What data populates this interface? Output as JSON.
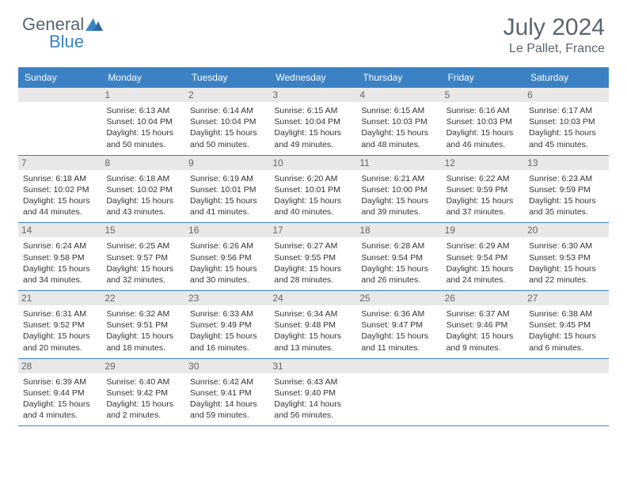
{
  "logo": {
    "part1": "General",
    "part2": "Blue"
  },
  "title": "July 2024",
  "location": "Le Pallet, France",
  "colors": {
    "header_bg": "#3b82c4",
    "header_text": "#ffffff",
    "daynum_bg": "#e8e8e8",
    "daynum_text": "#666666",
    "cell_text": "#333333",
    "title_text": "#5a6570",
    "row_border": "#3b82c4"
  },
  "day_headers": [
    "Sunday",
    "Monday",
    "Tuesday",
    "Wednesday",
    "Thursday",
    "Friday",
    "Saturday"
  ],
  "weeks": [
    [
      null,
      {
        "n": "1",
        "sr": "Sunrise: 6:13 AM",
        "ss": "Sunset: 10:04 PM",
        "d1": "Daylight: 15 hours",
        "d2": "and 50 minutes."
      },
      {
        "n": "2",
        "sr": "Sunrise: 6:14 AM",
        "ss": "Sunset: 10:04 PM",
        "d1": "Daylight: 15 hours",
        "d2": "and 50 minutes."
      },
      {
        "n": "3",
        "sr": "Sunrise: 6:15 AM",
        "ss": "Sunset: 10:04 PM",
        "d1": "Daylight: 15 hours",
        "d2": "and 49 minutes."
      },
      {
        "n": "4",
        "sr": "Sunrise: 6:15 AM",
        "ss": "Sunset: 10:03 PM",
        "d1": "Daylight: 15 hours",
        "d2": "and 48 minutes."
      },
      {
        "n": "5",
        "sr": "Sunrise: 6:16 AM",
        "ss": "Sunset: 10:03 PM",
        "d1": "Daylight: 15 hours",
        "d2": "and 46 minutes."
      },
      {
        "n": "6",
        "sr": "Sunrise: 6:17 AM",
        "ss": "Sunset: 10:03 PM",
        "d1": "Daylight: 15 hours",
        "d2": "and 45 minutes."
      }
    ],
    [
      {
        "n": "7",
        "sr": "Sunrise: 6:18 AM",
        "ss": "Sunset: 10:02 PM",
        "d1": "Daylight: 15 hours",
        "d2": "and 44 minutes."
      },
      {
        "n": "8",
        "sr": "Sunrise: 6:18 AM",
        "ss": "Sunset: 10:02 PM",
        "d1": "Daylight: 15 hours",
        "d2": "and 43 minutes."
      },
      {
        "n": "9",
        "sr": "Sunrise: 6:19 AM",
        "ss": "Sunset: 10:01 PM",
        "d1": "Daylight: 15 hours",
        "d2": "and 41 minutes."
      },
      {
        "n": "10",
        "sr": "Sunrise: 6:20 AM",
        "ss": "Sunset: 10:01 PM",
        "d1": "Daylight: 15 hours",
        "d2": "and 40 minutes."
      },
      {
        "n": "11",
        "sr": "Sunrise: 6:21 AM",
        "ss": "Sunset: 10:00 PM",
        "d1": "Daylight: 15 hours",
        "d2": "and 39 minutes."
      },
      {
        "n": "12",
        "sr": "Sunrise: 6:22 AM",
        "ss": "Sunset: 9:59 PM",
        "d1": "Daylight: 15 hours",
        "d2": "and 37 minutes."
      },
      {
        "n": "13",
        "sr": "Sunrise: 6:23 AM",
        "ss": "Sunset: 9:59 PM",
        "d1": "Daylight: 15 hours",
        "d2": "and 35 minutes."
      }
    ],
    [
      {
        "n": "14",
        "sr": "Sunrise: 6:24 AM",
        "ss": "Sunset: 9:58 PM",
        "d1": "Daylight: 15 hours",
        "d2": "and 34 minutes."
      },
      {
        "n": "15",
        "sr": "Sunrise: 6:25 AM",
        "ss": "Sunset: 9:57 PM",
        "d1": "Daylight: 15 hours",
        "d2": "and 32 minutes."
      },
      {
        "n": "16",
        "sr": "Sunrise: 6:26 AM",
        "ss": "Sunset: 9:56 PM",
        "d1": "Daylight: 15 hours",
        "d2": "and 30 minutes."
      },
      {
        "n": "17",
        "sr": "Sunrise: 6:27 AM",
        "ss": "Sunset: 9:55 PM",
        "d1": "Daylight: 15 hours",
        "d2": "and 28 minutes."
      },
      {
        "n": "18",
        "sr": "Sunrise: 6:28 AM",
        "ss": "Sunset: 9:54 PM",
        "d1": "Daylight: 15 hours",
        "d2": "and 26 minutes."
      },
      {
        "n": "19",
        "sr": "Sunrise: 6:29 AM",
        "ss": "Sunset: 9:54 PM",
        "d1": "Daylight: 15 hours",
        "d2": "and 24 minutes."
      },
      {
        "n": "20",
        "sr": "Sunrise: 6:30 AM",
        "ss": "Sunset: 9:53 PM",
        "d1": "Daylight: 15 hours",
        "d2": "and 22 minutes."
      }
    ],
    [
      {
        "n": "21",
        "sr": "Sunrise: 6:31 AM",
        "ss": "Sunset: 9:52 PM",
        "d1": "Daylight: 15 hours",
        "d2": "and 20 minutes."
      },
      {
        "n": "22",
        "sr": "Sunrise: 6:32 AM",
        "ss": "Sunset: 9:51 PM",
        "d1": "Daylight: 15 hours",
        "d2": "and 18 minutes."
      },
      {
        "n": "23",
        "sr": "Sunrise: 6:33 AM",
        "ss": "Sunset: 9:49 PM",
        "d1": "Daylight: 15 hours",
        "d2": "and 16 minutes."
      },
      {
        "n": "24",
        "sr": "Sunrise: 6:34 AM",
        "ss": "Sunset: 9:48 PM",
        "d1": "Daylight: 15 hours",
        "d2": "and 13 minutes."
      },
      {
        "n": "25",
        "sr": "Sunrise: 6:36 AM",
        "ss": "Sunset: 9:47 PM",
        "d1": "Daylight: 15 hours",
        "d2": "and 11 minutes."
      },
      {
        "n": "26",
        "sr": "Sunrise: 6:37 AM",
        "ss": "Sunset: 9:46 PM",
        "d1": "Daylight: 15 hours",
        "d2": "and 9 minutes."
      },
      {
        "n": "27",
        "sr": "Sunrise: 6:38 AM",
        "ss": "Sunset: 9:45 PM",
        "d1": "Daylight: 15 hours",
        "d2": "and 6 minutes."
      }
    ],
    [
      {
        "n": "28",
        "sr": "Sunrise: 6:39 AM",
        "ss": "Sunset: 9:44 PM",
        "d1": "Daylight: 15 hours",
        "d2": "and 4 minutes."
      },
      {
        "n": "29",
        "sr": "Sunrise: 6:40 AM",
        "ss": "Sunset: 9:42 PM",
        "d1": "Daylight: 15 hours",
        "d2": "and 2 minutes."
      },
      {
        "n": "30",
        "sr": "Sunrise: 6:42 AM",
        "ss": "Sunset: 9:41 PM",
        "d1": "Daylight: 14 hours",
        "d2": "and 59 minutes."
      },
      {
        "n": "31",
        "sr": "Sunrise: 6:43 AM",
        "ss": "Sunset: 9:40 PM",
        "d1": "Daylight: 14 hours",
        "d2": "and 56 minutes."
      },
      null,
      null,
      null
    ]
  ]
}
